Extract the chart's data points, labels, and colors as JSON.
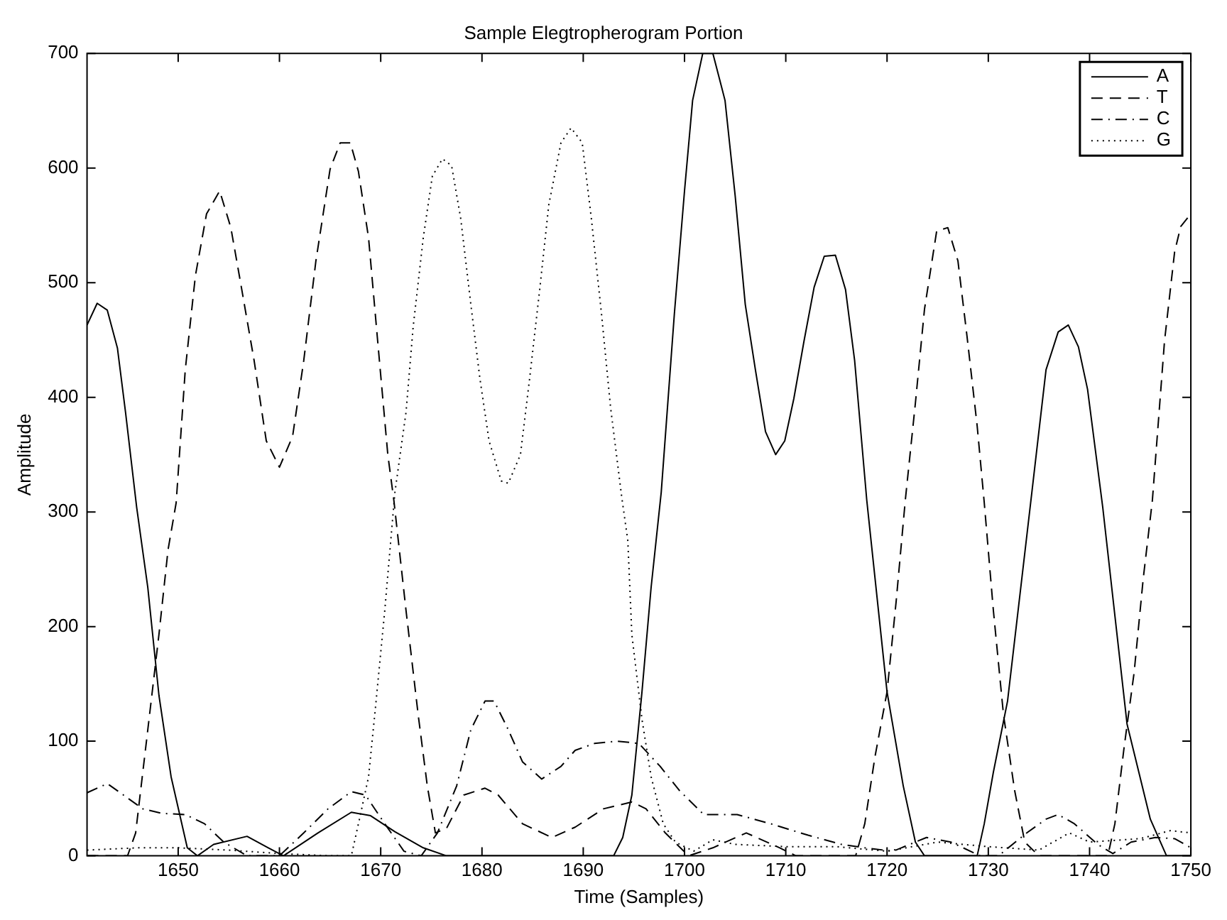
{
  "chart_data": {
    "type": "line",
    "title": "Sample Elegtropherogram Portion",
    "xlabel": "Time (Samples)",
    "ylabel": "Amplitude",
    "xlim": [
      1641,
      1750
    ],
    "ylim": [
      0,
      700
    ],
    "xticks": [
      1650,
      1660,
      1670,
      1680,
      1690,
      1700,
      1710,
      1720,
      1730,
      1740,
      1750
    ],
    "yticks": [
      0,
      100,
      200,
      300,
      400,
      500,
      600,
      700
    ],
    "grid": false,
    "legend": "top right",
    "marker": "none",
    "series": [
      {
        "name": "A",
        "color": "#000000",
        "line_style": "solid",
        "x": [
          1641,
          1642,
          1643,
          1644,
          1644.8,
          1645.9,
          1647,
          1648.1,
          1649.3,
          1650.9,
          1651.9,
          1653.5,
          1656.8,
          1658.9,
          1660.4,
          1663.8,
          1667.1,
          1669,
          1671.4,
          1674.2,
          1676.5,
          1693,
          1693.9,
          1694.8,
          1695.8,
          1696.7,
          1697.7,
          1699,
          1700,
          1700.8,
          1701.8,
          1702.8,
          1704,
          1705,
          1706,
          1707,
          1708,
          1709,
          1709.9,
          1710.8,
          1711.8,
          1712.8,
          1713.8,
          1714.9,
          1715.9,
          1716.8,
          1718,
          1720,
          1721.6,
          1722.8,
          1723.7,
          1728.9,
          1729.6,
          1730.5,
          1731.9,
          1734.3,
          1735.7,
          1736.9,
          1737.9,
          1738.9,
          1739.8,
          1741.3,
          1743.7,
          1746,
          1747.6,
          1750
        ],
        "values": [
          463,
          482,
          476,
          443,
          387,
          304,
          234,
          140,
          69,
          7,
          0,
          10,
          17,
          7,
          0,
          20,
          38,
          35,
          21,
          7,
          0,
          0,
          16,
          53,
          143,
          234,
          317,
          473,
          580,
          659,
          700,
          700,
          659,
          576,
          481,
          424,
          370,
          350,
          362,
          399,
          449,
          496,
          523,
          524,
          494,
          432,
          310,
          143,
          61,
          12,
          0,
          0,
          28,
          73,
          135,
          317,
          424,
          457,
          463,
          444,
          407,
          304,
          115,
          32,
          0,
          0
        ]
      },
      {
        "name": "T",
        "color": "#000000",
        "line_style": "dashed",
        "x": [
          1641,
          1645,
          1645.8,
          1647,
          1648.1,
          1649,
          1649.8,
          1650.7,
          1651.7,
          1652.8,
          1654.1,
          1655.2,
          1656.2,
          1657.5,
          1658.7,
          1660,
          1661.3,
          1662.4,
          1663.6,
          1665,
          1666,
          1667,
          1667.8,
          1668.8,
          1669.7,
          1670.7,
          1671.3,
          1672.5,
          1673.7,
          1674.6,
          1675.4,
          1676.5,
          1678.2,
          1680.3,
          1681.6,
          1684,
          1686.9,
          1689.2,
          1692,
          1694.8,
          1696.2,
          1698.1,
          1700.4,
          1702.8,
          1706.1,
          1709.4,
          1711,
          1716.9,
          1717.8,
          1718.8,
          1720,
          1720.9,
          1721.8,
          1722.8,
          1723.7,
          1724.9,
          1726,
          1727,
          1727.9,
          1728.9,
          1729.6,
          1730.5,
          1731.5,
          1732.6,
          1733.6,
          1735,
          1741.8,
          1742.5,
          1743.4,
          1744.4,
          1745.3,
          1746.2,
          1747.4,
          1748.4,
          1749,
          1750
        ],
        "values": [
          0,
          0,
          20,
          110,
          193,
          267,
          308,
          424,
          506,
          560,
          580,
          548,
          498,
          432,
          362,
          339,
          366,
          432,
          519,
          599,
          622,
          622,
          597,
          539,
          449,
          350,
          310,
          214,
          123,
          61,
          20,
          24,
          53,
          59,
          53,
          28,
          16,
          25,
          41,
          47,
          41,
          20,
          0,
          7,
          20,
          7,
          0,
          0,
          28,
          86,
          143,
          222,
          310,
          395,
          477,
          545,
          548,
          519,
          453,
          375,
          308,
          214,
          123,
          57,
          12,
          0,
          0,
          28,
          94,
          160,
          242,
          310,
          449,
          527,
          549,
          560
        ]
      },
      {
        "name": "C",
        "color": "#000000",
        "line_style": "dashdot",
        "x": [
          1641,
          1643,
          1644.6,
          1646.5,
          1648.4,
          1650.7,
          1652.6,
          1654.5,
          1656.8,
          1660,
          1662.4,
          1664.8,
          1667.1,
          1668.5,
          1670.4,
          1672.3,
          1674,
          1675.6,
          1677.5,
          1678.9,
          1680.3,
          1681.2,
          1682.6,
          1684,
          1685.9,
          1687.8,
          1689.2,
          1691.1,
          1693.4,
          1695.5,
          1697.6,
          1699.5,
          1701.9,
          1705.2,
          1708.5,
          1712.2,
          1715.5,
          1717.8,
          1720.6,
          1723.9,
          1726.3,
          1729.2,
          1731,
          1733.8,
          1735.7,
          1736.9,
          1738.5,
          1740.8,
          1742.3,
          1744.1,
          1746.5,
          1748.4,
          1750
        ],
        "values": [
          55,
          63,
          53,
          41,
          37,
          36,
          28,
          12,
          0,
          0,
          20,
          41,
          56,
          53,
          28,
          4,
          0,
          20,
          61,
          110,
          135,
          135,
          110,
          82,
          67,
          78,
          92,
          98,
          100,
          98,
          78,
          57,
          36,
          36,
          28,
          18,
          10,
          7,
          4,
          16,
          12,
          0,
          0,
          20,
          32,
          36,
          28,
          10,
          2,
          12,
          16,
          15,
          7
        ]
      },
      {
        "name": "G",
        "color": "#000000",
        "line_style": "dotted",
        "x": [
          1641,
          1646,
          1650,
          1655,
          1660,
          1665,
          1667.1,
          1668,
          1668.8,
          1669.5,
          1670.4,
          1671.4,
          1672.5,
          1673.2,
          1674.2,
          1675.1,
          1676.1,
          1677,
          1677.9,
          1678.9,
          1679.8,
          1680.7,
          1681.9,
          1682.6,
          1683.8,
          1684.7,
          1685.7,
          1686.6,
          1687.8,
          1688.8,
          1689.9,
          1690.8,
          1691.8,
          1692.7,
          1693.8,
          1694.4,
          1694.8,
          1695.8,
          1696.7,
          1697.9,
          1699.1,
          1700.9,
          1702.8,
          1705,
          1710,
          1715,
          1720,
          1725,
          1730,
          1735,
          1738,
          1740,
          1745,
          1748,
          1750
        ],
        "values": [
          5,
          7,
          7,
          5,
          2,
          0,
          0,
          36,
          69,
          131,
          214,
          317,
          387,
          461,
          539,
          593,
          608,
          602,
          556,
          481,
          416,
          362,
          327,
          325,
          350,
          416,
          494,
          568,
          622,
          635,
          622,
          556,
          473,
          391,
          313,
          275,
          193,
          119,
          69,
          28,
          12,
          4,
          14,
          10,
          8,
          8,
          4,
          12,
          8,
          5,
          20,
          12,
          15,
          22,
          20
        ]
      }
    ]
  }
}
